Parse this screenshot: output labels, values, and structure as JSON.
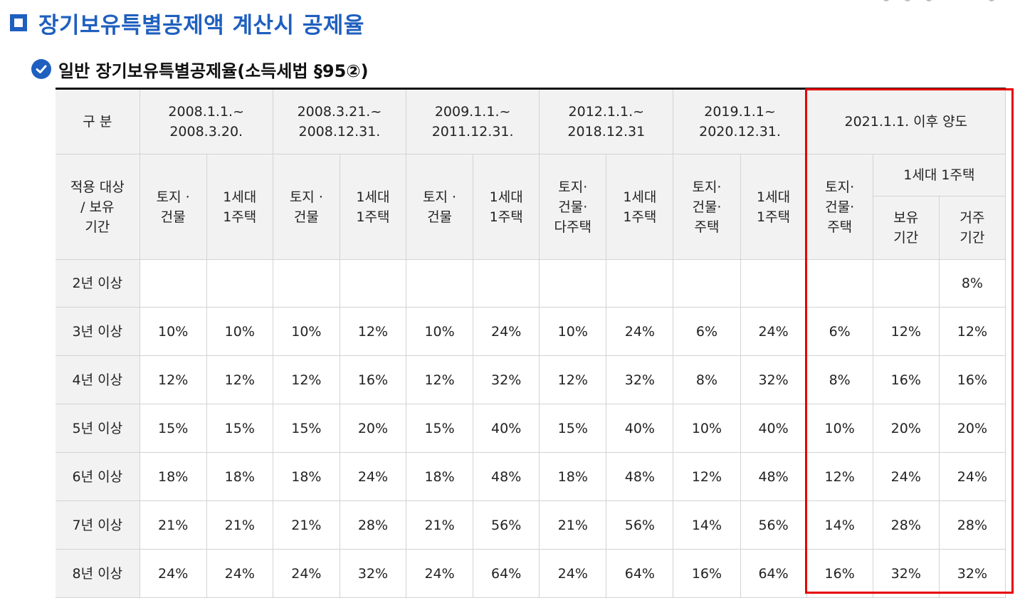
{
  "title": "장기보유특별공제액 계산시 공제율",
  "subtitle": "일반 장기보유특별공제율(소득세법 §95②)",
  "colors": {
    "heading": "#1f5fbf",
    "highlight_box": "#e60000",
    "header_bg": "#f2f2f2"
  },
  "icons": {
    "title": "square-bullet-icon",
    "subtitle": "check-circle-icon"
  },
  "table": {
    "corner_label": "구 분",
    "target_label": "적용 대상\n/ 보유\n기간",
    "periods": [
      "2008.1.1.~\n2008.3.20.",
      "2008.3.21.~\n2008.12.31.",
      "2009.1.1.~\n2011.12.31.",
      "2012.1.1.~\n2018.12.31",
      "2019.1.1~\n2020.12.31.",
      "2021.1.1. 이후 양도"
    ],
    "subheaders": [
      "토지 ·\n건물",
      "1세대\n1주택",
      "토지 ·\n건물",
      "1세대\n1주택",
      "토지 ·\n건물",
      "1세대\n1주택",
      "토지·\n건물·\n다주택",
      "1세대\n1주택",
      "토지·\n건물·\n주택",
      "1세대\n1주택",
      "토지·\n건물·\n주택",
      "1세대 1주택"
    ],
    "subsubheaders": [
      "보유\n기간",
      "거주\n기간"
    ],
    "rows": [
      {
        "label": "2년 이상",
        "values": [
          "",
          "",
          "",
          "",
          "",
          "",
          "",
          "",
          "",
          "",
          "",
          "",
          "8%"
        ]
      },
      {
        "label": "3년 이상",
        "values": [
          "10%",
          "10%",
          "10%",
          "12%",
          "10%",
          "24%",
          "10%",
          "24%",
          "6%",
          "24%",
          "6%",
          "12%",
          "12%"
        ]
      },
      {
        "label": "4년 이상",
        "values": [
          "12%",
          "12%",
          "12%",
          "16%",
          "12%",
          "32%",
          "12%",
          "32%",
          "8%",
          "32%",
          "8%",
          "16%",
          "16%"
        ]
      },
      {
        "label": "5년 이상",
        "values": [
          "15%",
          "15%",
          "15%",
          "20%",
          "15%",
          "40%",
          "15%",
          "40%",
          "10%",
          "40%",
          "10%",
          "20%",
          "20%"
        ]
      },
      {
        "label": "6년 이상",
        "values": [
          "18%",
          "18%",
          "18%",
          "24%",
          "18%",
          "48%",
          "18%",
          "48%",
          "12%",
          "48%",
          "12%",
          "24%",
          "24%"
        ]
      },
      {
        "label": "7년 이상",
        "values": [
          "21%",
          "21%",
          "21%",
          "28%",
          "21%",
          "56%",
          "21%",
          "56%",
          "14%",
          "56%",
          "14%",
          "28%",
          "28%"
        ]
      },
      {
        "label": "8년 이상",
        "values": [
          "24%",
          "24%",
          "24%",
          "32%",
          "24%",
          "64%",
          "24%",
          "64%",
          "16%",
          "64%",
          "16%",
          "32%",
          "32%"
        ]
      }
    ]
  }
}
